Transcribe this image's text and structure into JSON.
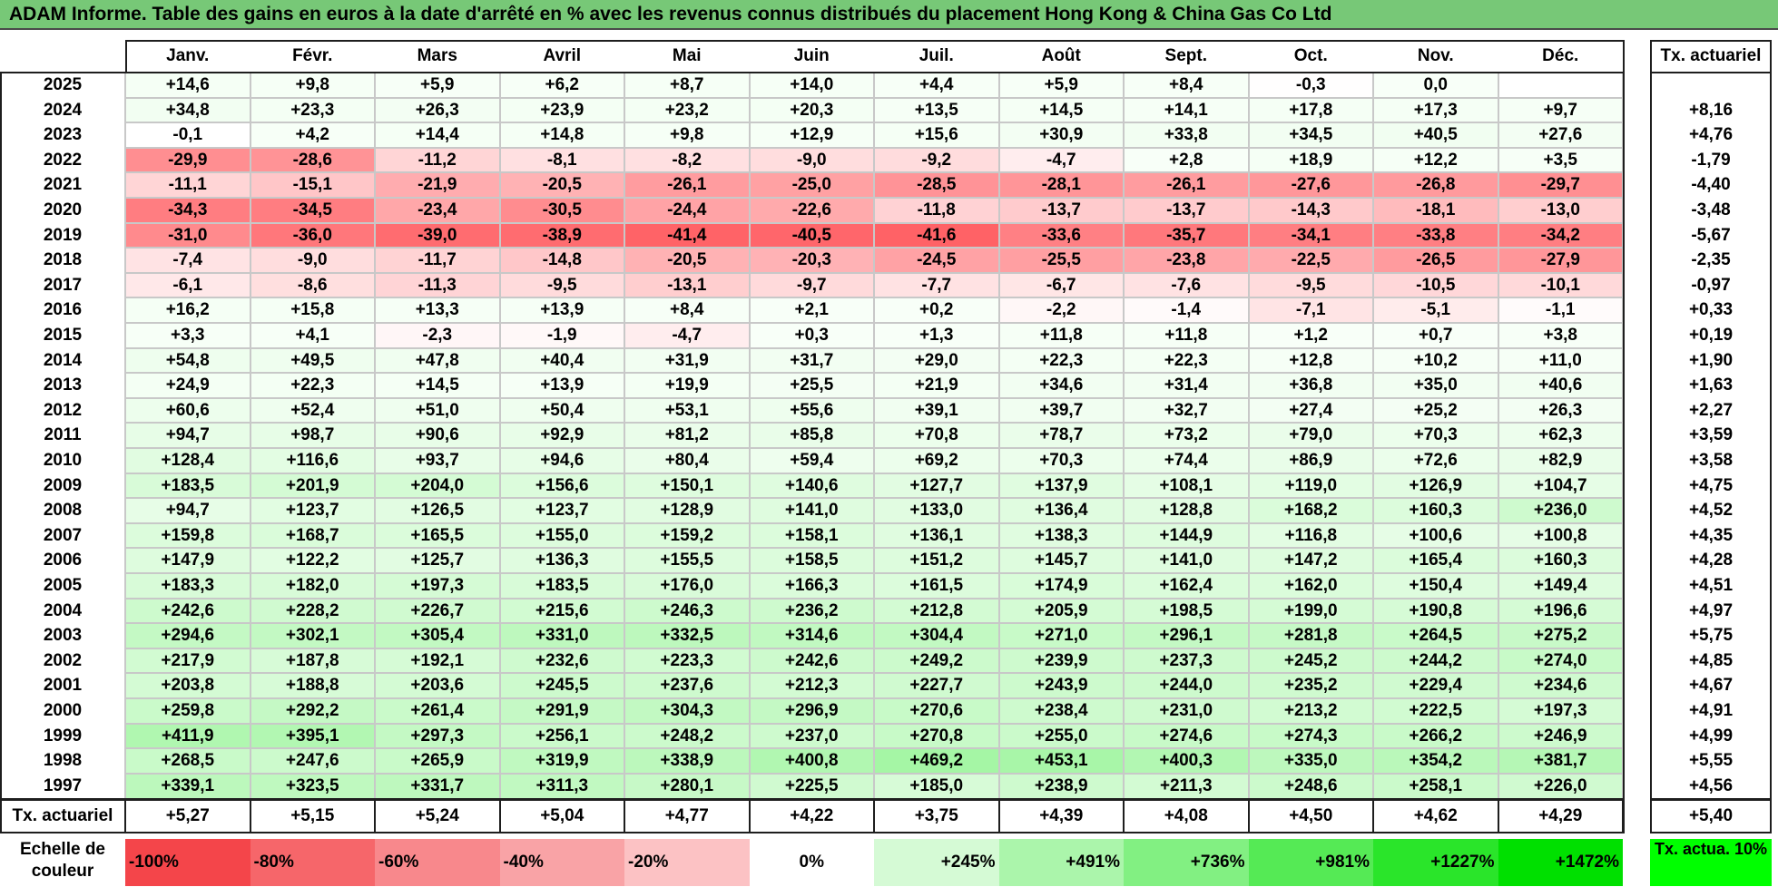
{
  "title": "ADAM Informe. Table des gains en euros à la date d'arrêté en % avec les revenus connus distribués du placement Hong Kong & China Gas Co Ltd",
  "months": [
    "Janv.",
    "Févr.",
    "Mars",
    "Avril",
    "Mai",
    "Juin",
    "Juil.",
    "Août",
    "Sept.",
    "Oct.",
    "Nov.",
    "Déc."
  ],
  "rate_header": "Tx. actuariel",
  "chart_data": {
    "type": "heatmap",
    "title": "ADAM Informe. Table des gains en euros à la date d'arrêté en % avec les revenus connus distribués du placement Hong Kong & China Gas Co Ltd",
    "columns": [
      "Janv.",
      "Févr.",
      "Mars",
      "Avril",
      "Mai",
      "Juin",
      "Juil.",
      "Août",
      "Sept.",
      "Oct.",
      "Nov.",
      "Déc."
    ],
    "rows": [
      {
        "year": "2025",
        "values": [
          "+14,6",
          "+9,8",
          "+5,9",
          "+6,2",
          "+8,7",
          "+14,0",
          "+4,4",
          "+5,9",
          "+8,4",
          "-0,3",
          "0,0",
          ""
        ],
        "rate": ""
      },
      {
        "year": "2024",
        "values": [
          "+34,8",
          "+23,3",
          "+26,3",
          "+23,9",
          "+23,2",
          "+20,3",
          "+13,5",
          "+14,5",
          "+14,1",
          "+17,8",
          "+17,3",
          "+9,7"
        ],
        "rate": "+8,16"
      },
      {
        "year": "2023",
        "values": [
          "-0,1",
          "+4,2",
          "+14,4",
          "+14,8",
          "+9,8",
          "+12,9",
          "+15,6",
          "+30,9",
          "+33,8",
          "+34,5",
          "+40,5",
          "+27,6"
        ],
        "rate": "+4,76"
      },
      {
        "year": "2022",
        "values": [
          "-29,9",
          "-28,6",
          "-11,2",
          "-8,1",
          "-8,2",
          "-9,0",
          "-9,2",
          "-4,7",
          "+2,8",
          "+18,9",
          "+12,2",
          "+3,5"
        ],
        "rate": "-1,79"
      },
      {
        "year": "2021",
        "values": [
          "-11,1",
          "-15,1",
          "-21,9",
          "-20,5",
          "-26,1",
          "-25,0",
          "-28,5",
          "-28,1",
          "-26,1",
          "-27,6",
          "-26,8",
          "-29,7"
        ],
        "rate": "-4,40"
      },
      {
        "year": "2020",
        "values": [
          "-34,3",
          "-34,5",
          "-23,4",
          "-30,5",
          "-24,4",
          "-22,6",
          "-11,8",
          "-13,7",
          "-13,7",
          "-14,3",
          "-18,1",
          "-13,0"
        ],
        "rate": "-3,48"
      },
      {
        "year": "2019",
        "values": [
          "-31,0",
          "-36,0",
          "-39,0",
          "-38,9",
          "-41,4",
          "-40,5",
          "-41,6",
          "-33,6",
          "-35,7",
          "-34,1",
          "-33,8",
          "-34,2"
        ],
        "rate": "-5,67"
      },
      {
        "year": "2018",
        "values": [
          "-7,4",
          "-9,0",
          "-11,7",
          "-14,8",
          "-20,5",
          "-20,3",
          "-24,5",
          "-25,5",
          "-23,8",
          "-22,5",
          "-26,5",
          "-27,9"
        ],
        "rate": "-2,35"
      },
      {
        "year": "2017",
        "values": [
          "-6,1",
          "-8,6",
          "-11,3",
          "-9,5",
          "-13,1",
          "-9,7",
          "-7,7",
          "-6,7",
          "-7,6",
          "-9,5",
          "-10,5",
          "-10,1"
        ],
        "rate": "-0,97"
      },
      {
        "year": "2016",
        "values": [
          "+16,2",
          "+15,8",
          "+13,3",
          "+13,9",
          "+8,4",
          "+2,1",
          "+0,2",
          "-2,2",
          "-1,4",
          "-7,1",
          "-5,1",
          "-1,1"
        ],
        "rate": "+0,33"
      },
      {
        "year": "2015",
        "values": [
          "+3,3",
          "+4,1",
          "-2,3",
          "-1,9",
          "-4,7",
          "+0,3",
          "+1,3",
          "+11,8",
          "+11,8",
          "+1,2",
          "+0,7",
          "+3,8"
        ],
        "rate": "+0,19"
      },
      {
        "year": "2014",
        "values": [
          "+54,8",
          "+49,5",
          "+47,8",
          "+40,4",
          "+31,9",
          "+31,7",
          "+29,0",
          "+22,3",
          "+22,3",
          "+12,8",
          "+10,2",
          "+11,0"
        ],
        "rate": "+1,90"
      },
      {
        "year": "2013",
        "values": [
          "+24,9",
          "+22,3",
          "+14,5",
          "+13,9",
          "+19,9",
          "+25,5",
          "+21,9",
          "+34,6",
          "+31,4",
          "+36,8",
          "+35,0",
          "+40,6"
        ],
        "rate": "+1,63"
      },
      {
        "year": "2012",
        "values": [
          "+60,6",
          "+52,4",
          "+51,0",
          "+50,4",
          "+53,1",
          "+55,6",
          "+39,1",
          "+39,7",
          "+32,7",
          "+27,4",
          "+25,2",
          "+26,3"
        ],
        "rate": "+2,27"
      },
      {
        "year": "2011",
        "values": [
          "+94,7",
          "+98,7",
          "+90,6",
          "+92,9",
          "+81,2",
          "+85,8",
          "+70,8",
          "+78,7",
          "+73,2",
          "+79,0",
          "+70,3",
          "+62,3"
        ],
        "rate": "+3,59"
      },
      {
        "year": "2010",
        "values": [
          "+128,4",
          "+116,6",
          "+93,7",
          "+94,6",
          "+80,4",
          "+59,4",
          "+69,2",
          "+70,3",
          "+74,4",
          "+86,9",
          "+72,6",
          "+82,9"
        ],
        "rate": "+3,58"
      },
      {
        "year": "2009",
        "values": [
          "+183,5",
          "+201,9",
          "+204,0",
          "+156,6",
          "+150,1",
          "+140,6",
          "+127,7",
          "+137,9",
          "+108,1",
          "+119,0",
          "+126,9",
          "+104,7"
        ],
        "rate": "+4,75"
      },
      {
        "year": "2008",
        "values": [
          "+94,7",
          "+123,7",
          "+126,5",
          "+123,7",
          "+128,9",
          "+141,0",
          "+133,0",
          "+136,4",
          "+128,8",
          "+168,2",
          "+160,3",
          "+236,0"
        ],
        "rate": "+4,52"
      },
      {
        "year": "2007",
        "values": [
          "+159,8",
          "+168,7",
          "+165,5",
          "+155,0",
          "+159,2",
          "+158,1",
          "+136,1",
          "+138,3",
          "+144,9",
          "+116,8",
          "+100,6",
          "+100,8"
        ],
        "rate": "+4,35"
      },
      {
        "year": "2006",
        "values": [
          "+147,9",
          "+122,2",
          "+125,7",
          "+136,3",
          "+155,5",
          "+158,5",
          "+151,2",
          "+145,7",
          "+141,0",
          "+147,2",
          "+165,4",
          "+160,3"
        ],
        "rate": "+4,28"
      },
      {
        "year": "2005",
        "values": [
          "+183,3",
          "+182,0",
          "+197,3",
          "+183,5",
          "+176,0",
          "+166,3",
          "+161,5",
          "+174,9",
          "+162,4",
          "+162,0",
          "+150,4",
          "+149,4"
        ],
        "rate": "+4,51"
      },
      {
        "year": "2004",
        "values": [
          "+242,6",
          "+228,2",
          "+226,7",
          "+215,6",
          "+246,3",
          "+236,2",
          "+212,8",
          "+205,9",
          "+198,5",
          "+199,0",
          "+190,8",
          "+196,6"
        ],
        "rate": "+4,97"
      },
      {
        "year": "2003",
        "values": [
          "+294,6",
          "+302,1",
          "+305,4",
          "+331,0",
          "+332,5",
          "+314,6",
          "+304,4",
          "+271,0",
          "+296,1",
          "+281,8",
          "+264,5",
          "+275,2"
        ],
        "rate": "+5,75"
      },
      {
        "year": "2002",
        "values": [
          "+217,9",
          "+187,8",
          "+192,1",
          "+232,6",
          "+223,3",
          "+242,6",
          "+249,2",
          "+239,9",
          "+237,3",
          "+245,2",
          "+244,2",
          "+274,0"
        ],
        "rate": "+4,85"
      },
      {
        "year": "2001",
        "values": [
          "+203,8",
          "+188,8",
          "+203,6",
          "+245,5",
          "+237,6",
          "+212,3",
          "+227,7",
          "+243,9",
          "+244,0",
          "+235,2",
          "+229,4",
          "+234,6"
        ],
        "rate": "+4,67"
      },
      {
        "year": "2000",
        "values": [
          "+259,8",
          "+292,2",
          "+261,4",
          "+291,9",
          "+304,3",
          "+296,9",
          "+270,6",
          "+238,4",
          "+231,0",
          "+213,2",
          "+222,5",
          "+197,3"
        ],
        "rate": "+4,91"
      },
      {
        "year": "1999",
        "values": [
          "+411,9",
          "+395,1",
          "+297,3",
          "+256,1",
          "+248,2",
          "+237,0",
          "+270,8",
          "+255,0",
          "+274,6",
          "+274,3",
          "+266,2",
          "+246,9"
        ],
        "rate": "+4,99"
      },
      {
        "year": "1998",
        "values": [
          "+268,5",
          "+247,6",
          "+265,9",
          "+319,9",
          "+338,9",
          "+400,8",
          "+469,2",
          "+453,1",
          "+400,3",
          "+335,0",
          "+354,2",
          "+381,7"
        ],
        "rate": "+5,55"
      },
      {
        "year": "1997",
        "values": [
          "+339,1",
          "+323,5",
          "+331,7",
          "+311,3",
          "+280,1",
          "+225,5",
          "+185,0",
          "+238,9",
          "+211,3",
          "+248,6",
          "+258,1",
          "+226,0"
        ],
        "rate": "+4,56"
      }
    ],
    "footer": {
      "label": "Tx. actuariel",
      "values": [
        "+5,27",
        "+5,15",
        "+5,24",
        "+5,04",
        "+4,77",
        "+4,22",
        "+3,75",
        "+4,39",
        "+4,08",
        "+4,50",
        "+4,62",
        "+4,29"
      ],
      "total": "+5,40"
    },
    "color_scale": {
      "label": "Echelle de couleur",
      "stops": [
        {
          "label": "-100%",
          "color": "#f4454a"
        },
        {
          "label": "-80%",
          "color": "#f6666a"
        },
        {
          "label": "-60%",
          "color": "#f8888c"
        },
        {
          "label": "-40%",
          "color": "#f9a3a6"
        },
        {
          "label": "-20%",
          "color": "#fcc2c4"
        },
        {
          "label": "0%",
          "color": "#ffffff"
        },
        {
          "label": "+245%",
          "color": "#d5fad5"
        },
        {
          "label": "+491%",
          "color": "#abf5ab"
        },
        {
          "label": "+736%",
          "color": "#82f082"
        },
        {
          "label": "+981%",
          "color": "#55ea55"
        },
        {
          "label": "+1227%",
          "color": "#2ae52a"
        },
        {
          "label": "+1472%",
          "color": "#00e000"
        }
      ],
      "right_label": "Tx. actua. 10%",
      "right_color": "#00ff00"
    },
    "colors": {
      "header_green": "#77c877",
      "negative_max": "#f4454a",
      "positive_max": "#00ff00"
    }
  }
}
